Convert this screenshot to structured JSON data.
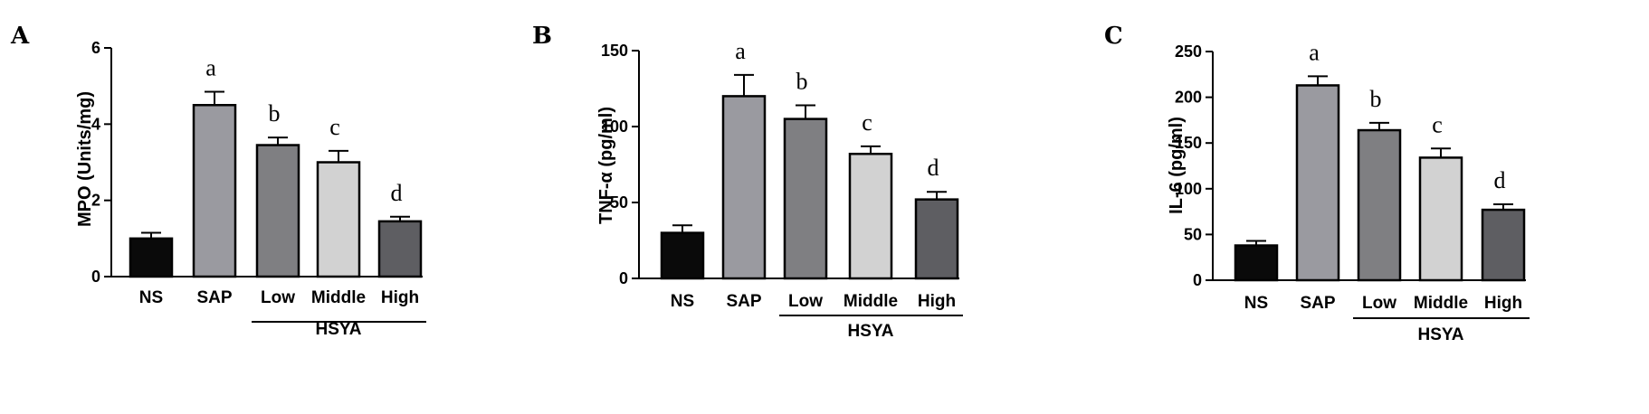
{
  "chart_data": [
    {
      "type": "bar",
      "panel": "A",
      "ylabel": "MPO (Units/mg)",
      "ylim": [
        0,
        6
      ],
      "yticks": [
        "0",
        "2",
        "4",
        "6"
      ],
      "categories": [
        "NS",
        "SAP",
        "Low",
        "Middle",
        "High"
      ],
      "values": [
        1.0,
        4.5,
        3.45,
        3.0,
        1.45
      ],
      "errors": [
        0.15,
        0.35,
        0.2,
        0.3,
        0.12
      ],
      "significance": [
        "",
        "a",
        "b",
        "c",
        "d"
      ],
      "group_label": "HSYA",
      "colors": [
        "#0a0a0a",
        "#9a9aa0",
        "#7f7f82",
        "#d2d2d2",
        "#5e5e62"
      ]
    },
    {
      "type": "bar",
      "panel": "B",
      "ylabel": "TNF-α (pg/ml)",
      "ylim": [
        0,
        150
      ],
      "yticks": [
        "0",
        "50",
        "100",
        "150"
      ],
      "categories": [
        "NS",
        "SAP",
        "Low",
        "Middle",
        "High"
      ],
      "values": [
        30,
        120,
        105,
        82,
        52
      ],
      "errors": [
        5,
        14,
        9,
        5,
        5
      ],
      "significance": [
        "",
        "a",
        "b",
        "c",
        "d"
      ],
      "group_label": "HSYA",
      "colors": [
        "#0a0a0a",
        "#9a9aa0",
        "#7f7f82",
        "#d2d2d2",
        "#5e5e62"
      ]
    },
    {
      "type": "bar",
      "panel": "C",
      "ylabel": "IL-6 (pg/ml)",
      "ylim": [
        0,
        250
      ],
      "yticks": [
        "0",
        "50",
        "100",
        "150",
        "200",
        "250"
      ],
      "categories": [
        "NS",
        "SAP",
        "Low",
        "Middle",
        "High"
      ],
      "values": [
        38,
        213,
        164,
        134,
        77
      ],
      "errors": [
        5,
        10,
        8,
        10,
        6
      ],
      "significance": [
        "",
        "a",
        "b",
        "c",
        "d"
      ],
      "group_label": "HSYA",
      "colors": [
        "#0a0a0a",
        "#9a9aa0",
        "#7f7f82",
        "#d2d2d2",
        "#5e5e62"
      ]
    }
  ]
}
